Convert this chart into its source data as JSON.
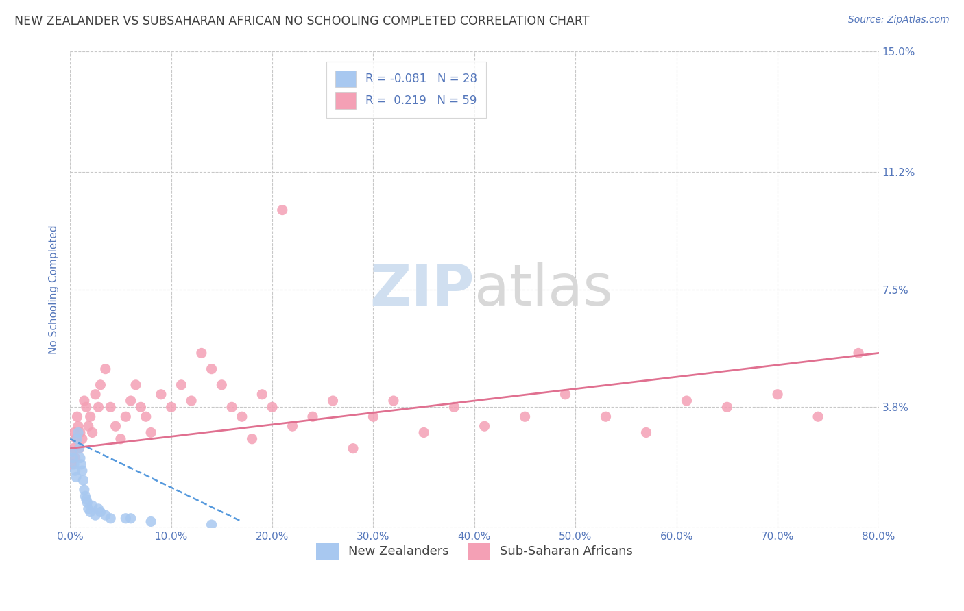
{
  "title": "NEW ZEALANDER VS SUBSAHARAN AFRICAN NO SCHOOLING COMPLETED CORRELATION CHART",
  "source": "Source: ZipAtlas.com",
  "ylabel": "No Schooling Completed",
  "xlim": [
    0.0,
    0.8
  ],
  "ylim": [
    0.0,
    0.15
  ],
  "yticks": [
    0.0,
    0.038,
    0.075,
    0.112,
    0.15
  ],
  "ytick_labels": [
    "",
    "3.8%",
    "7.5%",
    "11.2%",
    "15.0%"
  ],
  "xticks": [
    0.0,
    0.1,
    0.2,
    0.3,
    0.4,
    0.5,
    0.6,
    0.7,
    0.8
  ],
  "xtick_labels": [
    "0.0%",
    "10.0%",
    "20.0%",
    "30.0%",
    "40.0%",
    "50.0%",
    "60.0%",
    "70.0%",
    "80.0%"
  ],
  "nz_R": -0.081,
  "nz_N": 28,
  "ssa_R": 0.219,
  "ssa_N": 59,
  "nz_color": "#a8c8f0",
  "ssa_color": "#f4a0b5",
  "nz_line_color": "#5599dd",
  "ssa_line_color": "#e07090",
  "title_color": "#404040",
  "tick_label_color": "#5577bb",
  "grid_color": "#c8c8c8",
  "watermark_color": "#d0dff0",
  "legend_label_1": "New Zealanders",
  "legend_label_2": "Sub-Saharan Africans",
  "nz_scatter_x": [
    0.002,
    0.003,
    0.004,
    0.005,
    0.006,
    0.007,
    0.008,
    0.009,
    0.01,
    0.011,
    0.012,
    0.013,
    0.014,
    0.015,
    0.016,
    0.017,
    0.018,
    0.02,
    0.022,
    0.025,
    0.028,
    0.03,
    0.035,
    0.04,
    0.055,
    0.06,
    0.08,
    0.14
  ],
  "nz_scatter_y": [
    0.024,
    0.022,
    0.02,
    0.018,
    0.016,
    0.028,
    0.03,
    0.025,
    0.022,
    0.02,
    0.018,
    0.015,
    0.012,
    0.01,
    0.009,
    0.008,
    0.006,
    0.005,
    0.007,
    0.004,
    0.006,
    0.005,
    0.004,
    0.003,
    0.003,
    0.003,
    0.002,
    0.001
  ],
  "ssa_scatter_x": [
    0.002,
    0.003,
    0.004,
    0.005,
    0.006,
    0.007,
    0.008,
    0.009,
    0.01,
    0.012,
    0.014,
    0.016,
    0.018,
    0.02,
    0.022,
    0.025,
    0.028,
    0.03,
    0.035,
    0.04,
    0.045,
    0.05,
    0.055,
    0.06,
    0.065,
    0.07,
    0.075,
    0.08,
    0.09,
    0.1,
    0.11,
    0.12,
    0.13,
    0.14,
    0.15,
    0.16,
    0.17,
    0.18,
    0.19,
    0.2,
    0.21,
    0.22,
    0.24,
    0.26,
    0.28,
    0.3,
    0.32,
    0.35,
    0.38,
    0.41,
    0.45,
    0.49,
    0.53,
    0.57,
    0.61,
    0.65,
    0.7,
    0.74,
    0.78
  ],
  "ssa_scatter_y": [
    0.02,
    0.025,
    0.03,
    0.022,
    0.028,
    0.035,
    0.032,
    0.025,
    0.03,
    0.028,
    0.04,
    0.038,
    0.032,
    0.035,
    0.03,
    0.042,
    0.038,
    0.045,
    0.05,
    0.038,
    0.032,
    0.028,
    0.035,
    0.04,
    0.045,
    0.038,
    0.035,
    0.03,
    0.042,
    0.038,
    0.045,
    0.04,
    0.055,
    0.05,
    0.045,
    0.038,
    0.035,
    0.028,
    0.042,
    0.038,
    0.1,
    0.032,
    0.035,
    0.04,
    0.025,
    0.035,
    0.04,
    0.03,
    0.038,
    0.032,
    0.035,
    0.042,
    0.035,
    0.03,
    0.04,
    0.038,
    0.042,
    0.035,
    0.055
  ],
  "nz_line_x": [
    0.0,
    0.17
  ],
  "nz_line_y": [
    0.028,
    0.002
  ],
  "ssa_line_x": [
    0.0,
    0.8
  ],
  "ssa_line_y": [
    0.025,
    0.055
  ]
}
